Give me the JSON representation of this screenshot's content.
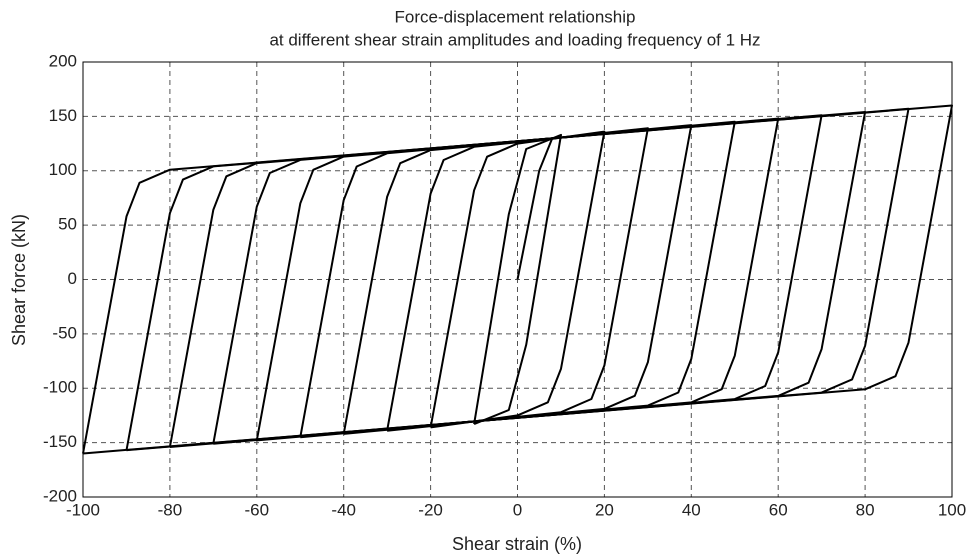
{
  "chart_data": {
    "type": "line",
    "title": "Force-displacement relationship",
    "subtitle": "at different shear strain amplitudes and loading frequency of 1 Hz",
    "xlabel": "Shear strain (%)",
    "ylabel": "Shear force (kN)",
    "xlim": [
      -100,
      100
    ],
    "ylim": [
      -200,
      200
    ],
    "xticks": [
      -100,
      -80,
      -60,
      -40,
      -20,
      0,
      20,
      40,
      60,
      80,
      100
    ],
    "yticks": [
      -200,
      -150,
      -100,
      -50,
      0,
      50,
      100,
      150,
      200
    ],
    "grid": true,
    "series": [
      {
        "color": "#000000",
        "x": [
          0,
          5,
          8
        ],
        "values": [
          0,
          100,
          130
        ]
      },
      {
        "color": "#000000",
        "x": [
          -10,
          -2,
          2,
          10,
          2,
          -2,
          -10
        ],
        "values": [
          -133,
          60,
          120,
          133,
          -60,
          -120,
          -133
        ]
      },
      {
        "color": "#000000",
        "x": [
          -20,
          -10,
          -7,
          0,
          20,
          10,
          7,
          0,
          -20
        ],
        "values": [
          -136,
          82,
          112.9,
          125,
          136,
          -82,
          -112.9,
          -125,
          -136
        ]
      },
      {
        "color": "#000000",
        "x": [
          -30,
          -20,
          -17,
          -10,
          30,
          20,
          17,
          10,
          -30
        ],
        "values": [
          -139,
          79,
          109.9,
          122,
          139,
          -79,
          -109.9,
          -122,
          -139
        ]
      },
      {
        "color": "#000000",
        "x": [
          -40,
          -30,
          -27,
          -20,
          40,
          30,
          27,
          20,
          -40
        ],
        "values": [
          -142,
          76,
          106.9,
          119,
          142,
          -76,
          -106.9,
          -119,
          -142
        ]
      },
      {
        "color": "#000000",
        "x": [
          -50,
          -40,
          -37,
          -30,
          50,
          40,
          37,
          30,
          -50
        ],
        "values": [
          -145,
          73,
          103.9,
          116,
          145,
          -73,
          -103.9,
          -116,
          -145
        ]
      },
      {
        "color": "#000000",
        "x": [
          -60,
          -50,
          -47,
          -40,
          60,
          50,
          47,
          40,
          -60
        ],
        "values": [
          -148,
          70,
          100.9,
          113,
          148,
          -70,
          -100.9,
          -113,
          -148
        ]
      },
      {
        "color": "#000000",
        "x": [
          -70,
          -60,
          -57,
          -50,
          70,
          60,
          57,
          50,
          -70
        ],
        "values": [
          -151,
          67,
          97.9,
          110,
          151,
          -67,
          -97.9,
          -110,
          -151
        ]
      },
      {
        "color": "#000000",
        "x": [
          -80,
          -70,
          -67,
          -60,
          80,
          70,
          67,
          60,
          -80
        ],
        "values": [
          -154,
          64,
          94.9,
          107,
          154,
          -64,
          -94.9,
          -107,
          -154
        ]
      },
      {
        "color": "#000000",
        "x": [
          -90,
          -80,
          -77,
          -70,
          90,
          80,
          77,
          70,
          -90
        ],
        "values": [
          -157,
          61,
          91.9,
          104,
          157,
          -61,
          -91.9,
          -104,
          -157
        ]
      },
      {
        "color": "#000000",
        "x": [
          -100,
          -90,
          -87,
          -80,
          100,
          90,
          87,
          80,
          -100
        ],
        "values": [
          -160,
          58,
          88.9,
          101,
          160,
          -58,
          -88.9,
          -101,
          -160
        ]
      }
    ]
  }
}
